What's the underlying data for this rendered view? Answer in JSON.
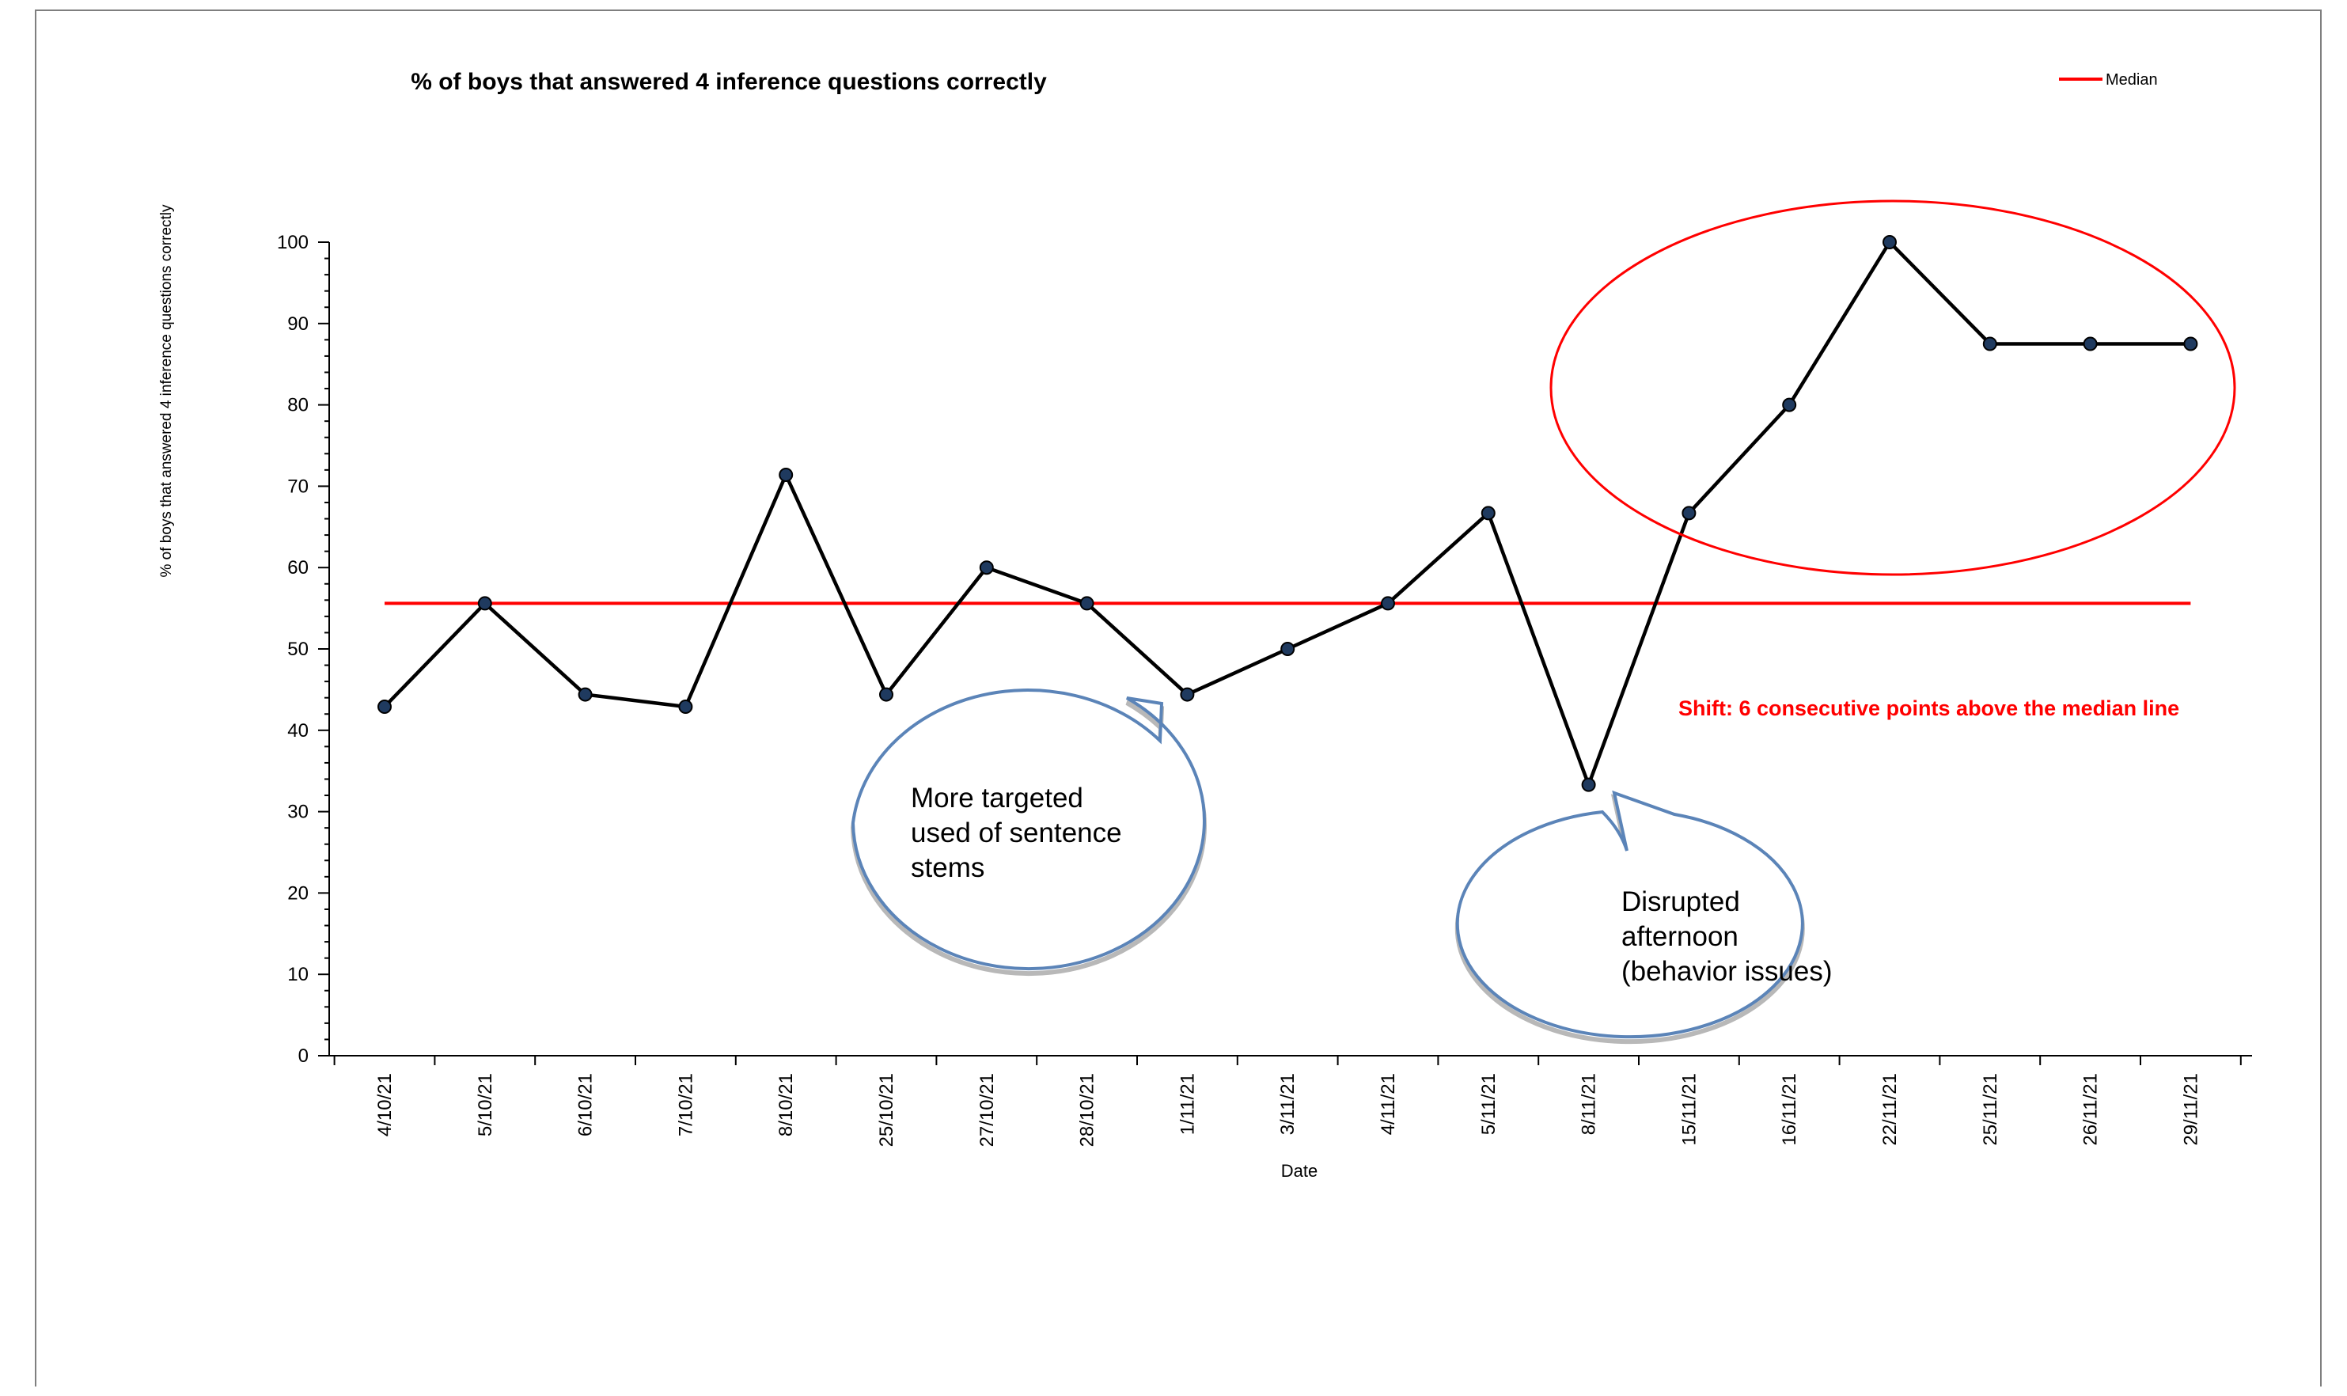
{
  "chart_data": {
    "type": "line",
    "title": "% of boys that answered 4 inference questions correctly",
    "xlabel": "Date",
    "ylabel": "% of boys that answered 4 inference questions correctly",
    "ylim": [
      0,
      100
    ],
    "y_ticks": [
      0,
      10,
      20,
      30,
      40,
      50,
      60,
      70,
      80,
      90,
      100
    ],
    "categories": [
      "4/10/21",
      "5/10/21",
      "6/10/21",
      "7/10/21",
      "8/10/21",
      "25/10/21",
      "27/10/21",
      "28/10/21",
      "1/11/21",
      "3/11/21",
      "4/11/21",
      "5/11/21",
      "8/11/21",
      "15/11/21",
      "16/11/21",
      "22/11/21",
      "25/11/21",
      "26/11/21",
      "29/11/21"
    ],
    "series": [
      {
        "values": [
          42.9,
          55.6,
          44.4,
          42.9,
          71.4,
          44.4,
          60.0,
          55.6,
          44.4,
          50.0,
          55.6,
          66.7,
          33.3,
          66.7,
          80.0,
          100.0,
          87.5,
          87.5,
          87.5
        ],
        "color": "#000000",
        "marker_color": "#1f3a5f"
      },
      {
        "name": "Median",
        "values": [
          55.6,
          55.6,
          55.6,
          55.6,
          55.6,
          55.6,
          55.6,
          55.6,
          55.6,
          55.6,
          55.6,
          55.6,
          55.6,
          55.6,
          55.6,
          55.6,
          55.6,
          55.6,
          55.6
        ],
        "color": "#ff0000"
      }
    ],
    "legend": {
      "position": "top-right",
      "entries": [
        "Median"
      ]
    },
    "grid": false,
    "annotations": {
      "callout_1": [
        "More targeted",
        "used of sentence",
        "stems"
      ],
      "callout_2": [
        "Disrupted",
        "afternoon",
        "(behavior issues)"
      ],
      "shift_note": "Shift: 6 consecutive points above the median line"
    },
    "colors": {
      "median": "#ff0000",
      "callout_outline": "#5b84b8",
      "callout_shadow": "#b8b8b8"
    }
  }
}
